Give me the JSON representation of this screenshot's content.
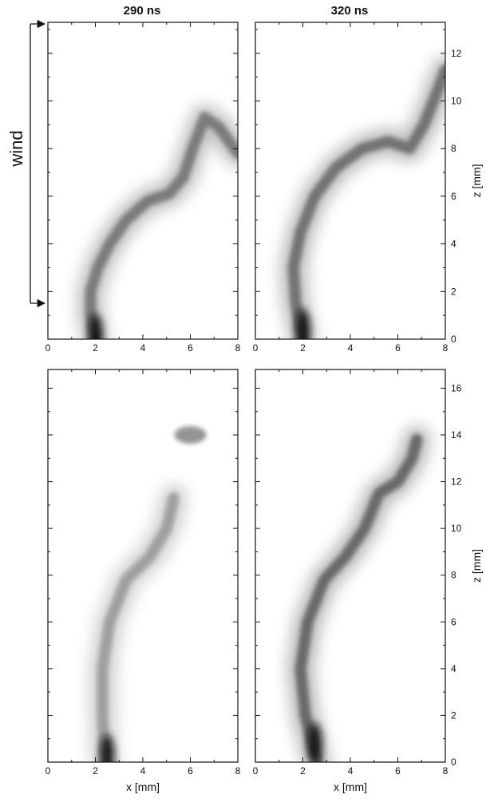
{
  "figure": {
    "column_titles": [
      "290 ns",
      "320 ns"
    ],
    "wind_label": "wind",
    "wind_arrow_colors": "#111111"
  },
  "chart_data": [
    {
      "type": "heatmap",
      "panel": "top-left",
      "title": "290 ns",
      "xlim": [
        0,
        8
      ],
      "ylim": [
        0,
        13.3
      ],
      "x_ticks": [
        "0",
        "2",
        "4",
        "6",
        "8"
      ],
      "y_ticks": [],
      "xlabel": "",
      "ylabel": "",
      "filament_path": [
        [
          2.0,
          0.0
        ],
        [
          1.8,
          1.0
        ],
        [
          1.8,
          2.0
        ],
        [
          2.1,
          3.0
        ],
        [
          2.6,
          4.0
        ],
        [
          3.3,
          5.0
        ],
        [
          4.2,
          5.8
        ],
        [
          5.1,
          6.1
        ],
        [
          5.7,
          6.8
        ],
        [
          6.1,
          8.0
        ],
        [
          6.6,
          9.3
        ],
        [
          7.2,
          8.9
        ],
        [
          8.0,
          7.8
        ]
      ],
      "peak_intensity": 0.75,
      "bright_spot": [
        2.0,
        0.2
      ]
    },
    {
      "type": "heatmap",
      "panel": "top-right",
      "title": "320 ns",
      "xlim": [
        0,
        8
      ],
      "ylim": [
        0,
        13.3
      ],
      "x_ticks": [
        "0",
        "2",
        "4",
        "6",
        "8"
      ],
      "y_ticks": [
        "0",
        "2",
        "4",
        "6",
        "8",
        "10",
        "12"
      ],
      "xlabel": "",
      "ylabel": "z [mm]",
      "filament_path": [
        [
          2.0,
          0.0
        ],
        [
          1.7,
          1.5
        ],
        [
          1.6,
          3.0
        ],
        [
          1.9,
          4.5
        ],
        [
          2.5,
          6.0
        ],
        [
          3.4,
          7.2
        ],
        [
          4.5,
          8.0
        ],
        [
          5.6,
          8.3
        ],
        [
          6.5,
          8.0
        ],
        [
          7.1,
          9.0
        ],
        [
          7.7,
          10.5
        ],
        [
          8.0,
          11.3
        ]
      ],
      "peak_intensity": 0.8,
      "bright_spot": [
        2.0,
        0.4
      ]
    },
    {
      "type": "heatmap",
      "panel": "bottom-left",
      "title": "",
      "xlim": [
        0,
        8
      ],
      "ylim": [
        0,
        16.8
      ],
      "x_ticks": [
        "0",
        "2",
        "4",
        "6",
        "8"
      ],
      "y_ticks": [],
      "xlabel": "x [mm]",
      "ylabel": "",
      "filament_path": [
        [
          2.4,
          0.0
        ],
        [
          2.3,
          2.0
        ],
        [
          2.3,
          4.0
        ],
        [
          2.6,
          6.0
        ],
        [
          3.3,
          7.8
        ],
        [
          4.3,
          8.8
        ],
        [
          5.0,
          10.0
        ],
        [
          5.3,
          11.3
        ]
      ],
      "extra_blob": [
        6.0,
        14.0
      ],
      "peak_intensity": 0.55,
      "bright_spot": [
        2.5,
        0.3
      ]
    },
    {
      "type": "heatmap",
      "panel": "bottom-right",
      "title": "",
      "xlim": [
        0,
        8
      ],
      "ylim": [
        0,
        16.8
      ],
      "x_ticks": [
        "0",
        "2",
        "4",
        "6",
        "8"
      ],
      "y_ticks": [
        "0",
        "2",
        "4",
        "6",
        "8",
        "10",
        "12",
        "14",
        "16"
      ],
      "xlabel": "x [mm]",
      "ylabel": "z [mm]",
      "filament_path": [
        [
          2.6,
          0.0
        ],
        [
          2.1,
          2.0
        ],
        [
          1.9,
          4.0
        ],
        [
          2.2,
          6.0
        ],
        [
          2.9,
          7.8
        ],
        [
          3.8,
          8.8
        ],
        [
          4.6,
          10.0
        ],
        [
          5.2,
          11.5
        ],
        [
          6.0,
          12.0
        ],
        [
          6.6,
          13.0
        ],
        [
          6.8,
          13.8
        ]
      ],
      "peak_intensity": 0.85,
      "bright_spot": [
        2.5,
        0.8
      ]
    }
  ]
}
